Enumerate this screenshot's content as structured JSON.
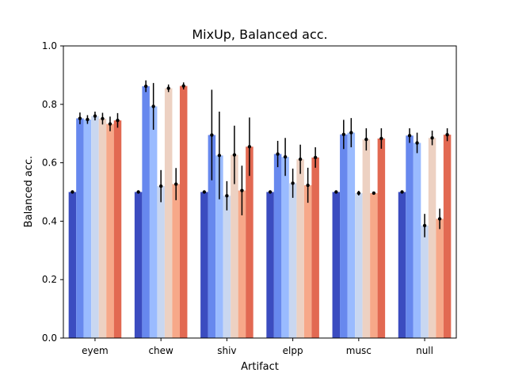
{
  "chart_data": {
    "type": "bar",
    "title": "MixUp, Balanced acc.",
    "xlabel": "Artifact",
    "ylabel": "Balanced acc.",
    "ylim": [
      0,
      1.0
    ],
    "yticks": [
      "0.0",
      "0.2",
      "0.4",
      "0.6",
      "0.8",
      "1.0"
    ],
    "grid": false,
    "legend": "none",
    "categories": [
      "eyem",
      "chew",
      "shiv",
      "elpp",
      "musc",
      "null"
    ],
    "colors": [
      "#3b4cc0",
      "#6788ee",
      "#9abbff",
      "#c9d7f0",
      "#edd1c2",
      "#f7a889",
      "#e26952",
      "#b40426"
    ],
    "series": [
      {
        "values": [
          0.5,
          0.5,
          0.5,
          0.5,
          0.5,
          0.5
        ],
        "errors": [
          0.003,
          0.003,
          0.003,
          0.003,
          0.003,
          0.003
        ]
      },
      {
        "values": [
          0.752,
          0.862,
          0.695,
          0.63,
          0.697,
          0.693
        ],
        "errors": [
          0.02,
          0.02,
          0.155,
          0.045,
          0.05,
          0.025
        ]
      },
      {
        "values": [
          0.748,
          0.793,
          0.625,
          0.62,
          0.703,
          0.668
        ],
        "errors": [
          0.015,
          0.08,
          0.15,
          0.065,
          0.05,
          0.035
        ]
      },
      {
        "values": [
          0.76,
          0.52,
          0.487,
          0.53,
          0.496,
          0.385
        ],
        "errors": [
          0.015,
          0.055,
          0.05,
          0.05,
          0.008,
          0.04
        ]
      },
      {
        "values": [
          0.751,
          0.855,
          0.627,
          0.612,
          0.68,
          0.685
        ],
        "errors": [
          0.02,
          0.013,
          0.1,
          0.05,
          0.038,
          0.025
        ]
      },
      {
        "values": [
          0.733,
          0.527,
          0.505,
          0.523,
          0.496,
          0.408
        ],
        "errors": [
          0.025,
          0.055,
          0.085,
          0.06,
          0.005,
          0.035
        ]
      },
      {
        "values": [
          0.745,
          0.863,
          0.655,
          0.618,
          0.683,
          0.696
        ],
        "errors": [
          0.025,
          0.012,
          0.1,
          0.035,
          0.035,
          0.022
        ]
      }
    ]
  }
}
